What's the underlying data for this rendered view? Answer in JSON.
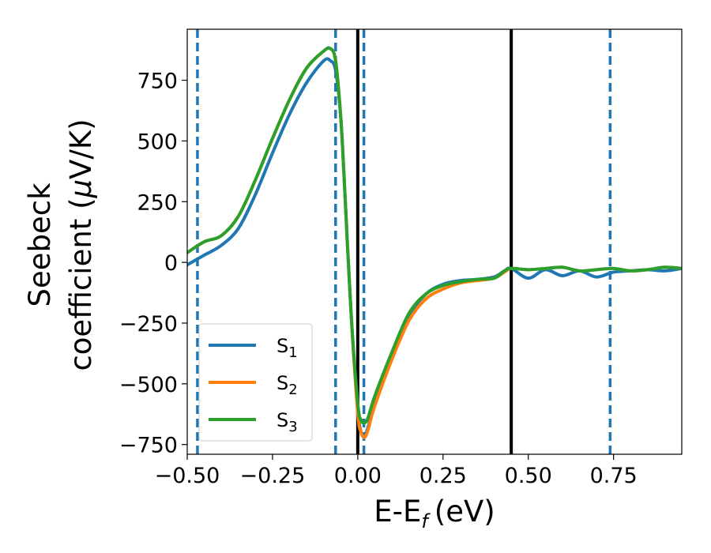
{
  "chart_data": {
    "type": "line",
    "xlabel": "E-E",
    "xlabel_sub": "f",
    "xlabel_unit": "(eV)",
    "ylabel_line1": "Seebeck",
    "ylabel_line2_pre": "coefficient  (",
    "ylabel_mu": "μ",
    "ylabel_line2_post": "V/K)",
    "xlim": [
      -0.5,
      0.95
    ],
    "ylim": [
      -790,
      960
    ],
    "xticks": [
      -0.5,
      -0.25,
      0.0,
      0.25,
      0.5,
      0.75
    ],
    "xtick_labels": [
      "−0.50",
      "−0.25",
      "0.00",
      "0.25",
      "0.50",
      "0.75"
    ],
    "yticks": [
      -750,
      -500,
      -250,
      0,
      250,
      500,
      750
    ],
    "ytick_labels": [
      "−750",
      "−500",
      "−250",
      "0",
      "250",
      "500",
      "750"
    ],
    "grid": false,
    "legend_position": "lower-left",
    "solid_vlines": [
      0.0,
      0.45
    ],
    "solid_vline_color": "#000000",
    "dashed_vlines": [
      -0.47,
      -0.065,
      0.018,
      0.74
    ],
    "dashed_vline_color": "#1f77b4",
    "series": [
      {
        "name": "S",
        "sub": "1",
        "color": "#1f77b4",
        "x": [
          -0.5,
          -0.45,
          -0.4,
          -0.35,
          -0.3,
          -0.25,
          -0.2,
          -0.15,
          -0.1,
          -0.08,
          -0.065,
          -0.05,
          -0.04,
          -0.02,
          0.0,
          0.01,
          0.02,
          0.03,
          0.05,
          0.1,
          0.15,
          0.2,
          0.25,
          0.3,
          0.35,
          0.4,
          0.43,
          0.45,
          0.5,
          0.55,
          0.6,
          0.65,
          0.7,
          0.75,
          0.8,
          0.85,
          0.9,
          0.95
        ],
        "y": [
          -10,
          30,
          70,
          140,
          280,
          450,
          610,
          740,
          830,
          830,
          790,
          600,
          350,
          -200,
          -600,
          -700,
          -710,
          -680,
          -580,
          -380,
          -220,
          -130,
          -90,
          -75,
          -70,
          -60,
          -35,
          -25,
          -65,
          -30,
          -55,
          -35,
          -60,
          -40,
          -35,
          -30,
          -35,
          -25
        ]
      },
      {
        "name": "S",
        "sub": "2",
        "color": "#ff7f0e",
        "x": [
          -0.5,
          -0.45,
          -0.4,
          -0.35,
          -0.3,
          -0.25,
          -0.2,
          -0.15,
          -0.1,
          -0.08,
          -0.065,
          -0.05,
          -0.04,
          -0.02,
          0.0,
          0.01,
          0.02,
          0.03,
          0.05,
          0.1,
          0.15,
          0.2,
          0.25,
          0.3,
          0.35,
          0.4,
          0.43,
          0.45,
          0.5,
          0.55,
          0.6,
          0.65,
          0.7,
          0.75,
          0.8,
          0.85,
          0.9,
          0.95
        ],
        "y": [
          40,
          85,
          110,
          190,
          340,
          510,
          670,
          800,
          870,
          880,
          830,
          600,
          350,
          -200,
          -620,
          -700,
          -720,
          -690,
          -590,
          -400,
          -240,
          -150,
          -110,
          -85,
          -75,
          -65,
          -40,
          -25,
          -30,
          -25,
          -20,
          -35,
          -30,
          -25,
          -35,
          -30,
          -20,
          -25
        ]
      },
      {
        "name": "S",
        "sub": "3",
        "color": "#2ca02c",
        "x": [
          -0.5,
          -0.45,
          -0.4,
          -0.35,
          -0.3,
          -0.25,
          -0.2,
          -0.15,
          -0.1,
          -0.08,
          -0.065,
          -0.05,
          -0.04,
          -0.02,
          0.0,
          0.01,
          0.02,
          0.03,
          0.05,
          0.1,
          0.15,
          0.2,
          0.25,
          0.3,
          0.35,
          0.4,
          0.43,
          0.45,
          0.5,
          0.55,
          0.6,
          0.65,
          0.7,
          0.75,
          0.8,
          0.85,
          0.9,
          0.95
        ],
        "y": [
          40,
          85,
          110,
          190,
          340,
          510,
          670,
          800,
          870,
          880,
          830,
          600,
          350,
          -200,
          -580,
          -650,
          -660,
          -640,
          -550,
          -370,
          -210,
          -130,
          -95,
          -80,
          -70,
          -65,
          -35,
          -25,
          -30,
          -25,
          -20,
          -35,
          -30,
          -25,
          -35,
          -30,
          -20,
          -25
        ]
      }
    ]
  }
}
